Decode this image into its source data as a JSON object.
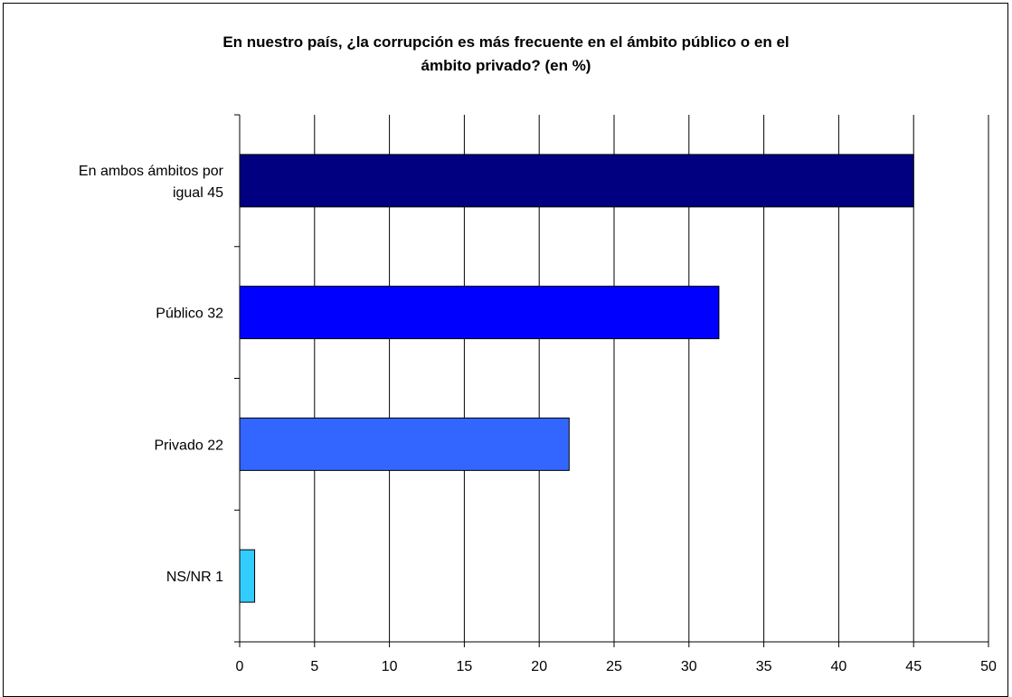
{
  "chart_data": {
    "type": "bar",
    "orientation": "horizontal",
    "title_lines": [
      "En nuestro país, ¿la corrupción es más frecuente en el ámbito público o en el",
      "ámbito privado? (en %)"
    ],
    "categories": [
      [
        "En ambos ámbitos por",
        "igual  45"
      ],
      [
        "Público  32"
      ],
      [
        "Privado  22"
      ],
      [
        "NS/NR  1"
      ]
    ],
    "values": [
      45,
      32,
      22,
      1
    ],
    "colors": [
      "#000080",
      "#0000ff",
      "#3366ff",
      "#33ccff"
    ],
    "xlim": [
      0,
      50
    ],
    "xticks": [
      "0",
      "5",
      "10",
      "15",
      "20",
      "25",
      "30",
      "35",
      "40",
      "45",
      "50"
    ],
    "grid": "vertical",
    "legend": "none"
  }
}
